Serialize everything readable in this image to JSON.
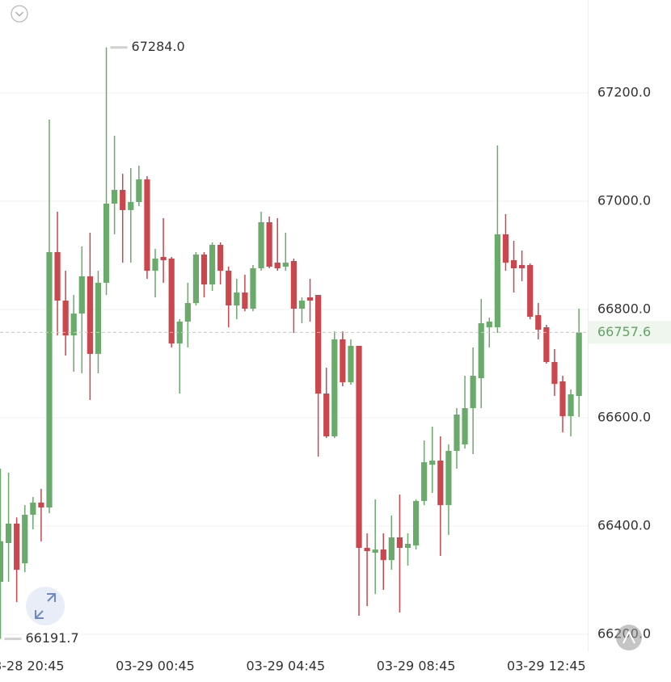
{
  "chart_data": {
    "type": "candlestick",
    "categories": [
      null,
      null,
      null,
      "03-28 20:45",
      null,
      null,
      null,
      null,
      null,
      null,
      null,
      null,
      null,
      null,
      null,
      null,
      null,
      null,
      null,
      "03-29 00:45",
      null,
      null,
      null,
      null,
      null,
      null,
      null,
      null,
      null,
      null,
      null,
      null,
      null,
      null,
      null,
      "03-29 04:45",
      null,
      null,
      null,
      null,
      null,
      null,
      null,
      null,
      null,
      null,
      null,
      null,
      null,
      null,
      null,
      "03-29 08:45",
      null,
      null,
      null,
      null,
      null,
      null,
      null,
      null,
      null,
      null,
      null,
      null,
      null,
      null,
      null,
      "03-29 12:45",
      null,
      null,
      null,
      null
    ],
    "open": [
      66297,
      66368.7,
      66404.5,
      66331.3,
      66420.9,
      66443.3,
      66434.3,
      66906,
      66816.4,
      66752.2,
      66792.5,
      66861.2,
      66718,
      66849.3,
      66995.5,
      67020.9,
      66983.6,
      66998.5,
      67040.3,
      66871.6,
      66897,
      66894,
      66737.3,
      66777.6,
      66811.9,
      66901.5,
      66846.3,
      66919.4,
      66871.6,
      66807.5,
      66831.3,
      66801.5,
      66876.1,
      66961.2,
      66886.6,
      66879.1,
      66889.6,
      66801.5,
      66822.4,
      66826.9,
      66644.8,
      66565.7,
      66744.8,
      66665.7,
      66732.8,
      66359.7,
      66350.7,
      66356.7,
      66337.3,
      66379.1,
      66359.7,
      66364.2,
      66446.3,
      66513.4,
      66520.9,
      66438.8,
      66538.8,
      66550.7,
      66617.9,
      66673.1,
      66767.2,
      66767.2,
      66938.8,
      66891,
      66882.1,
      66882.1,
      66789.6,
      66767.2,
      66703,
      66667.2,
      66603,
      66640.3
    ],
    "high": [
      66506,
      66498.5,
      66416,
      66438.8,
      66453.7,
      66468.7,
      67150.7,
      66980.6,
      66871.6,
      66826.9,
      66916.4,
      66941.8,
      66871.6,
      67284,
      67120.9,
      67050.7,
      67061.2,
      67065.7,
      67046.3,
      66911.9,
      66968.7,
      66897,
      66782.1,
      66849.3,
      66906,
      66906,
      66923.9,
      66923.9,
      66879.1,
      66856.7,
      66864.2,
      66882.1,
      66980.6,
      66971.6,
      66968.7,
      66941.8,
      66894,
      66822.4,
      66856.7,
      66826.9,
      66692.5,
      66759.7,
      66759.7,
      66744.8,
      66732.8,
      66386.6,
      66449.3,
      66386.6,
      66419.4,
      66458.2,
      66386.6,
      66449.3,
      66558.2,
      66583.6,
      66565.7,
      66550.7,
      66617.9,
      66677.6,
      66729.9,
      66819.4,
      66785,
      67103,
      66976.1,
      66926.9,
      66908.9,
      66885.1,
      66811.9,
      66771.6,
      66726.9,
      66677.6,
      66652.2,
      66801.5
    ],
    "low": [
      66191.7,
      66297,
      66259.7,
      66314.9,
      66394,
      66371.6,
      66423.9,
      66752.2,
      66714.9,
      66685,
      66682.1,
      66632.8,
      66682.1,
      66826.9,
      66938.8,
      66886.6,
      66886.6,
      66991,
      66856.7,
      66822.4,
      66849.3,
      66729.9,
      66644.8,
      66729.9,
      66807.5,
      66822.4,
      66834.3,
      66846.3,
      66767.2,
      66782.1,
      66797,
      66797,
      66871.6,
      66876.1,
      66871.6,
      66871.6,
      66756.7,
      66774.6,
      66777.6,
      66528.4,
      66562.7,
      66562.7,
      66658.2,
      66661,
      66234.3,
      66252.2,
      66274.6,
      66282.1,
      66319.4,
      66240.3,
      66326.9,
      66356.7,
      66438.8,
      66461.2,
      66344.8,
      66383.6,
      66506,
      66543.3,
      66532.8,
      66617.9,
      66729.9,
      66756.7,
      66871.6,
      66831.3,
      66852.2,
      66782.1,
      66744.8,
      66700,
      66640.3,
      66573.1,
      66565.7,
      66601.5
    ],
    "close": [
      66372,
      66404.5,
      66319.4,
      66420.9,
      66443.3,
      66434.3,
      66906,
      66816.4,
      66752.2,
      66792.5,
      66861.2,
      66718,
      66849.3,
      66995.5,
      67020.9,
      66983.6,
      66998.5,
      67040.3,
      66871.6,
      66894,
      66891,
      66737.3,
      66777.6,
      66811.9,
      66901.5,
      66846.3,
      66919.4,
      66871.6,
      66807.5,
      66831.3,
      66801.5,
      66876.1,
      66961.2,
      66879.1,
      66876.1,
      66886.6,
      66801.5,
      66816.4,
      66816.4,
      66644.8,
      66565.7,
      66744.8,
      66665.7,
      66732.8,
      66359.7,
      66353.7,
      66356.7,
      66337.3,
      66379.1,
      66359.7,
      66367.2,
      66446.3,
      66517.9,
      66520.9,
      66438.8,
      66538.8,
      66605.9,
      66617.9,
      66677.6,
      66774.6,
      66777.6,
      66938.8,
      66886.6,
      66876.1,
      66876.1,
      66786.6,
      66762.7,
      66703,
      66662.7,
      66603,
      66643.3,
      66757.6
    ],
    "up_color": "#6aab6b",
    "down_color": "#c9474d",
    "ylim": [
      66168.7,
      67371.6
    ],
    "yticks": [
      {
        "value": 66200,
        "label": "66200.0"
      },
      {
        "value": 66400,
        "label": "66400.0"
      },
      {
        "value": 66600,
        "label": "66600.0"
      },
      {
        "value": 66800,
        "label": "66800.0"
      },
      {
        "value": 67000,
        "label": "67000.0"
      },
      {
        "value": 67200,
        "label": "67200.0"
      }
    ],
    "grid": true,
    "annotations": [
      {
        "value": 67284,
        "label": "67284.0"
      },
      {
        "value": 66191.7,
        "label": "66191.7"
      }
    ],
    "last_price": {
      "value": 66757.6,
      "label": "66757.6",
      "color": "#5fa55f"
    }
  }
}
